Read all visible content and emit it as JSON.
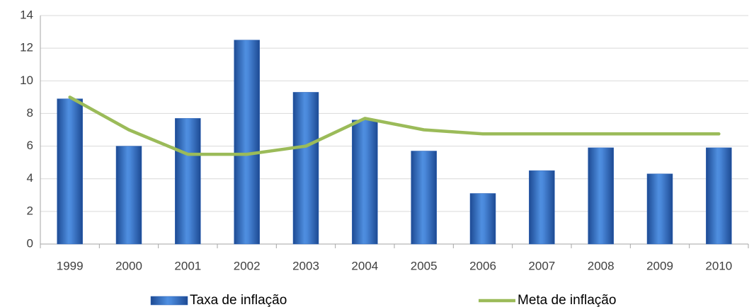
{
  "chart_data": {
    "type": "bar",
    "categories": [
      "1999",
      "2000",
      "2001",
      "2002",
      "2003",
      "2004",
      "2005",
      "2006",
      "2007",
      "2008",
      "2009",
      "2010"
    ],
    "series": [
      {
        "name": "Taxa de inflação",
        "type": "bar",
        "color": "#2e64b8",
        "values": [
          8.9,
          6.0,
          7.7,
          12.5,
          9.3,
          7.6,
          5.7,
          3.1,
          4.5,
          5.9,
          4.3,
          5.9
        ]
      },
      {
        "name": "Meta de inflação",
        "type": "line",
        "color": "#9bbb59",
        "values": [
          9.0,
          7.0,
          5.5,
          5.5,
          6.0,
          7.7,
          7.0,
          6.75,
          6.75,
          6.75,
          6.75,
          6.75
        ]
      }
    ],
    "ylim": [
      0,
      14
    ],
    "yticks": [
      0,
      2,
      4,
      6,
      8,
      10,
      12,
      14
    ],
    "grid": true,
    "legend": "bottom"
  }
}
